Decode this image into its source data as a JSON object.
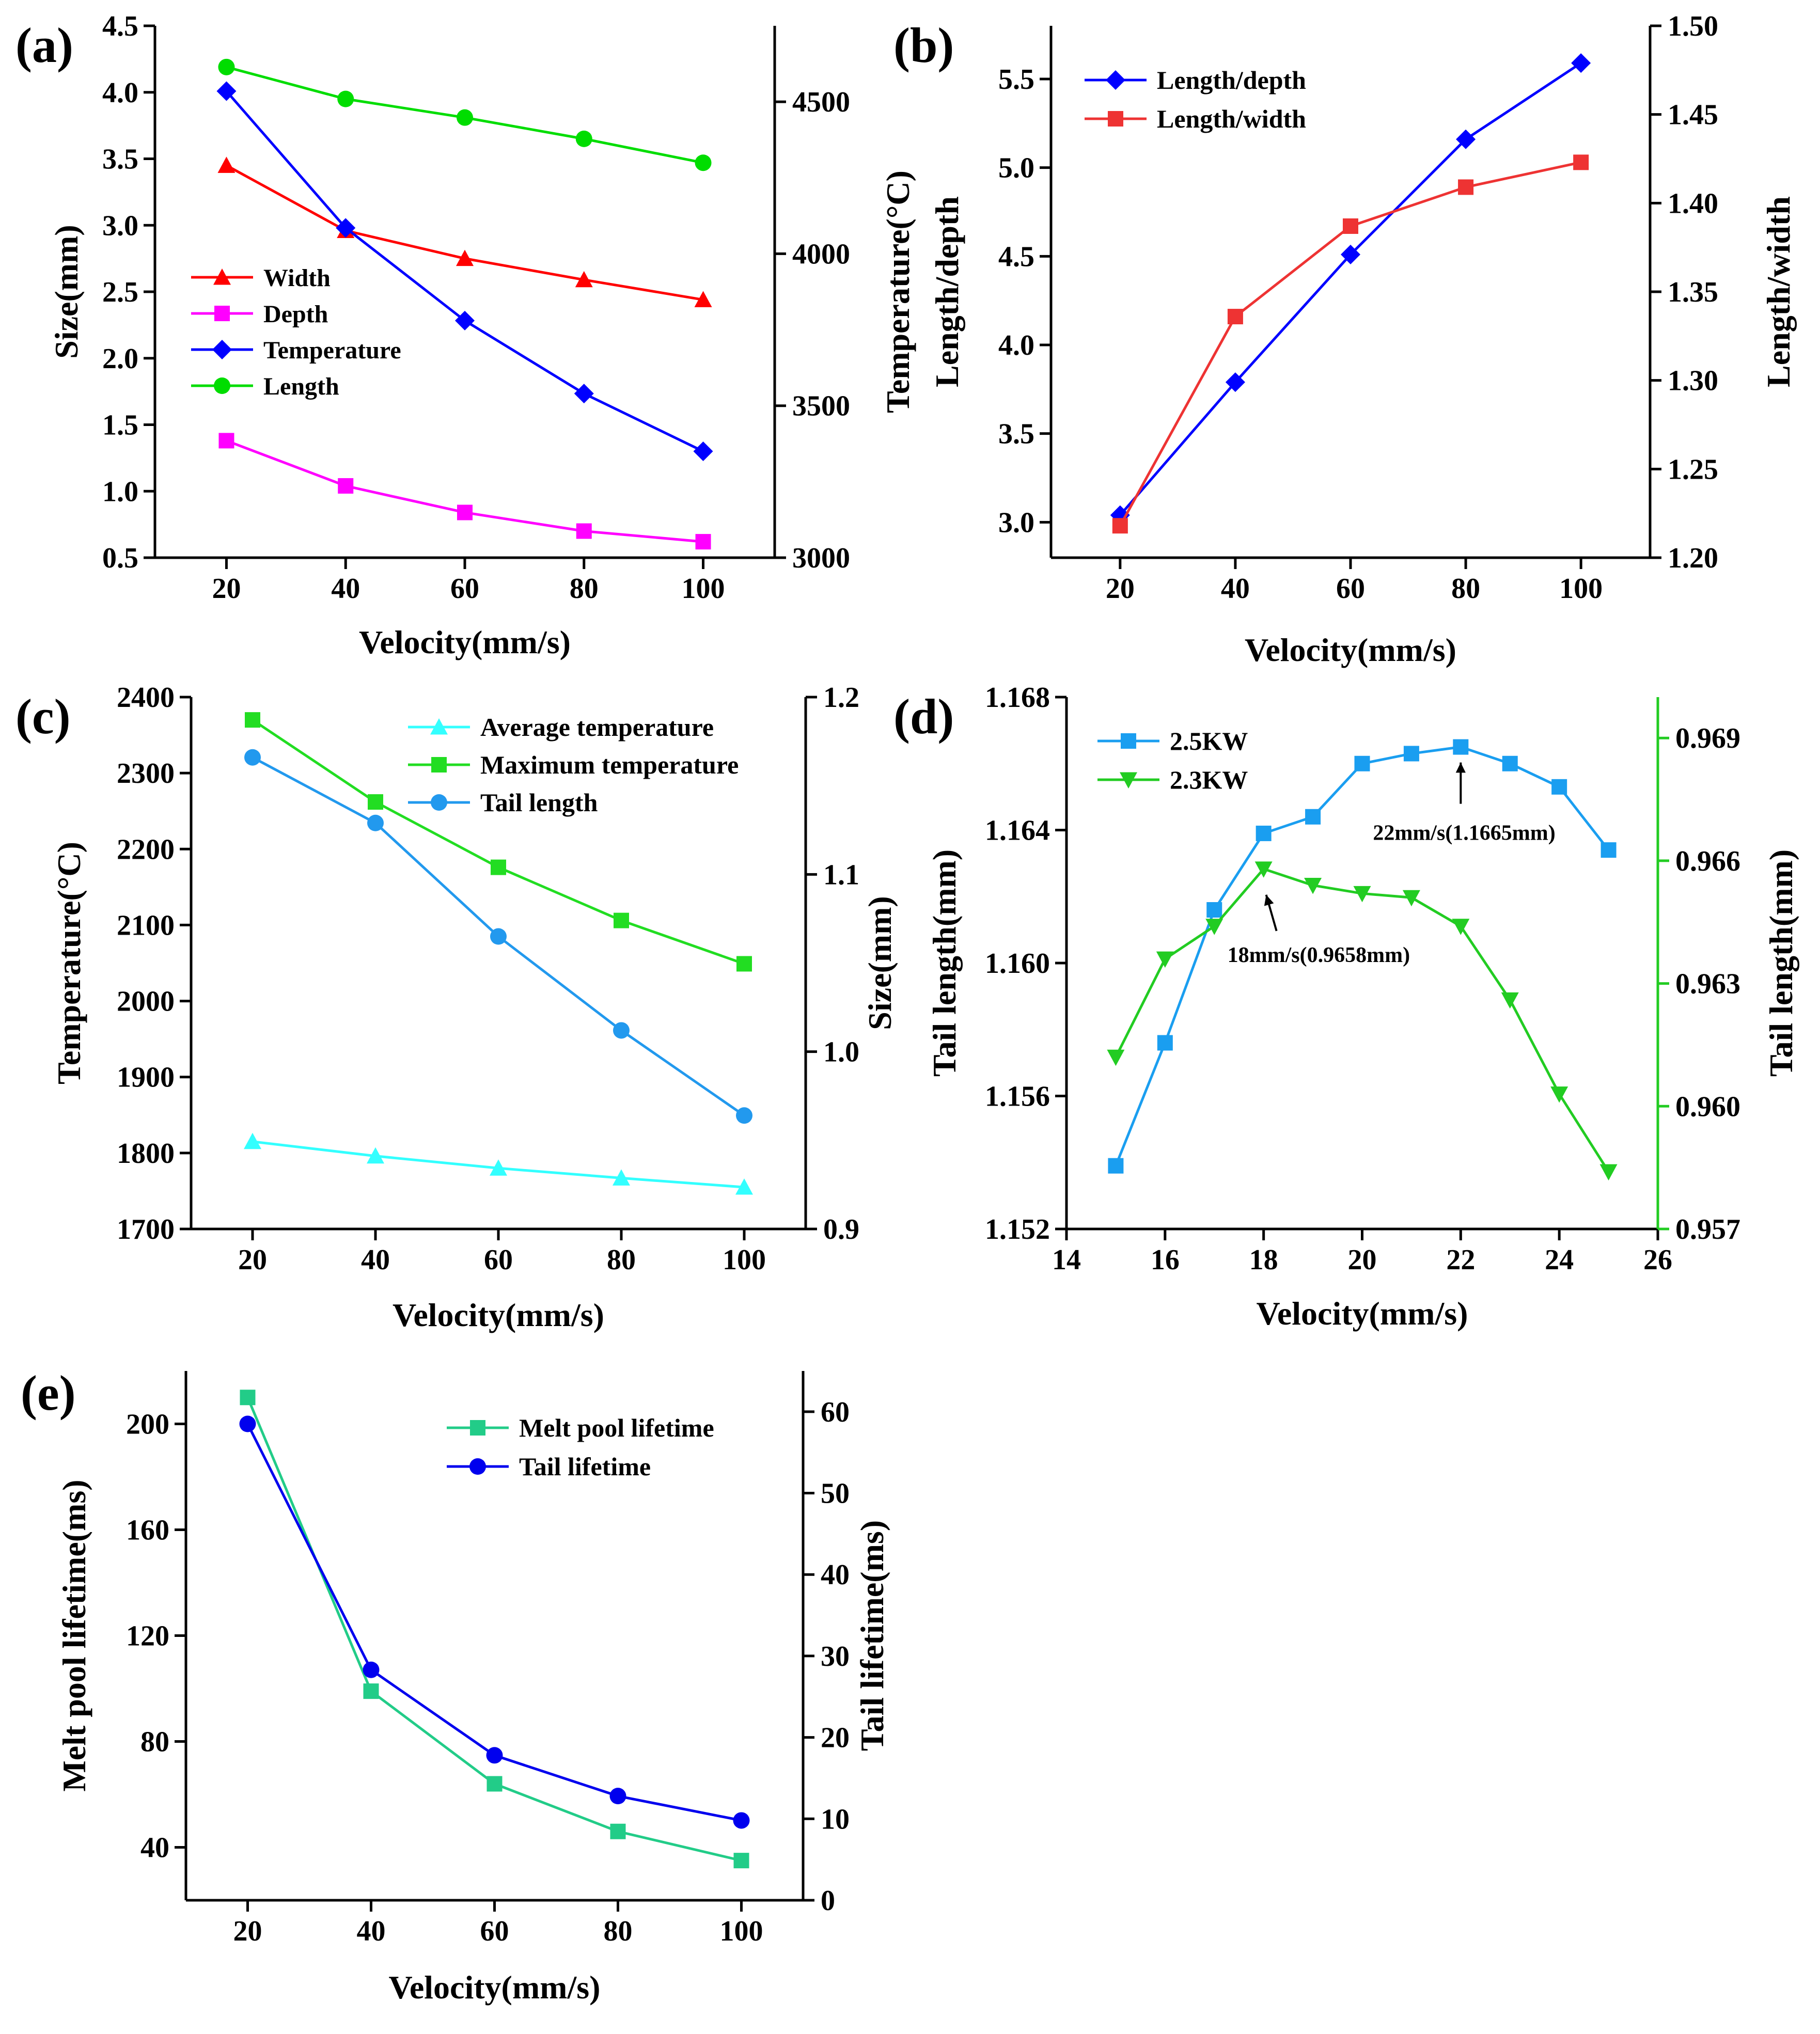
{
  "chart_data": [
    {
      "id": "a",
      "panel_label": "(a)",
      "type": "line",
      "xlabel": "Velocity(mm/s)",
      "ylabel": "Size(mm)",
      "y2label": "Temperature(°C)",
      "xlim": [
        8,
        112
      ],
      "ylim": [
        0.5,
        4.5
      ],
      "y2lim": [
        3000,
        4750
      ],
      "xticks": [
        20,
        40,
        60,
        80,
        100
      ],
      "yticks": [
        "0.5",
        "1.0",
        "1.5",
        "2.0",
        "2.5",
        "3.0",
        "3.5",
        "4.0",
        "4.5"
      ],
      "y2ticks": [
        "3000",
        "3500",
        "4000",
        "4500"
      ],
      "legend": "center-left",
      "series": [
        {
          "name": "Width",
          "color": "#ff0000",
          "marker": "triangle",
          "axis": "left",
          "x": [
            20,
            40,
            60,
            80,
            100
          ],
          "values": [
            3.45,
            2.96,
            2.75,
            2.59,
            2.44
          ]
        },
        {
          "name": "Depth",
          "color": "#ff00ff",
          "marker": "square",
          "axis": "left",
          "x": [
            20,
            40,
            60,
            80,
            100
          ],
          "values": [
            1.38,
            1.04,
            0.84,
            0.7,
            0.62
          ]
        },
        {
          "name": "Temperature",
          "color": "#0000ff",
          "marker": "diamond",
          "axis": "right",
          "x": [
            20,
            40,
            60,
            80,
            100
          ],
          "values": [
            4535,
            4085,
            3780,
            3540,
            3350
          ]
        },
        {
          "name": "Length",
          "color": "#00dd00",
          "marker": "circle",
          "axis": "left",
          "x": [
            20,
            40,
            60,
            80,
            100
          ],
          "values": [
            4.19,
            3.95,
            3.81,
            3.65,
            3.47
          ]
        }
      ]
    },
    {
      "id": "b",
      "panel_label": "(b)",
      "type": "line",
      "xlabel": "Velocity(mm/s)",
      "ylabel": "Length/depth",
      "y2label": "Length/width",
      "xlim": [
        8,
        112
      ],
      "ylim": [
        2.8,
        5.8
      ],
      "y2lim": [
        1.2,
        1.5
      ],
      "xticks": [
        20,
        40,
        60,
        80,
        100
      ],
      "yticks": [
        "3.0",
        "3.5",
        "4.0",
        "4.5",
        "5.0",
        "5.5"
      ],
      "y2ticks": [
        "1.20",
        "1.25",
        "1.30",
        "1.35",
        "1.40",
        "1.45",
        "1.50"
      ],
      "legend": "top-left",
      "series": [
        {
          "name": "Length/depth",
          "color": "#0000ff",
          "marker": "diamond",
          "axis": "left",
          "x": [
            20,
            40,
            60,
            80,
            100
          ],
          "values": [
            3.04,
            3.79,
            4.51,
            5.16,
            5.59
          ]
        },
        {
          "name": "Length/width",
          "color": "#ee3333",
          "marker": "square",
          "axis": "right",
          "x": [
            20,
            40,
            60,
            80,
            100
          ],
          "values": [
            1.218,
            1.336,
            1.387,
            1.409,
            1.423
          ]
        }
      ]
    },
    {
      "id": "c",
      "panel_label": "(c)",
      "type": "line",
      "xlabel": "Velocity(mm/s)",
      "ylabel": "Temperature(°C)",
      "y2label": "Size(mm)",
      "xlim": [
        10,
        110
      ],
      "ylim": [
        1700,
        2400
      ],
      "y2lim": [
        0.9,
        1.2
      ],
      "xticks": [
        20,
        40,
        60,
        80,
        100
      ],
      "yticks": [
        "1700",
        "1800",
        "1900",
        "2000",
        "2100",
        "2200",
        "2300",
        "2400"
      ],
      "y2ticks": [
        "0.9",
        "1.0",
        "1.1",
        "1.2"
      ],
      "legend": "top-right",
      "series": [
        {
          "name": "Average temperature",
          "color": "#33ffff",
          "marker": "triangle",
          "axis": "left",
          "x": [
            20,
            40,
            60,
            80,
            100
          ],
          "values": [
            1815,
            1796,
            1780,
            1767,
            1755
          ]
        },
        {
          "name": "Maximum temperature",
          "color": "#22dd22",
          "marker": "square",
          "axis": "left",
          "x": [
            20,
            40,
            60,
            80,
            100
          ],
          "values": [
            2370,
            2262,
            2176,
            2106,
            2049
          ]
        },
        {
          "name": "Tail length",
          "color": "#2299ee",
          "marker": "circle",
          "axis": "right",
          "x": [
            20,
            40,
            60,
            80,
            100
          ],
          "values": [
            1.166,
            1.129,
            1.065,
            1.012,
            0.964
          ]
        }
      ]
    },
    {
      "id": "d",
      "panel_label": "(d)",
      "type": "line",
      "xlabel": "Velocity(mm/s)",
      "ylabel": "Tail length(mm)",
      "y2label": "Tail length(mm)",
      "xlim": [
        14,
        26
      ],
      "ylim": [
        1.152,
        1.168
      ],
      "y2lim": [
        0.957,
        0.97
      ],
      "xticks": [
        14,
        16,
        18,
        20,
        22,
        24,
        26
      ],
      "yticks": [
        "1.152",
        "1.156",
        "1.160",
        "1.164",
        "1.168"
      ],
      "y2ticks": [
        "0.957",
        "0.960",
        "0.963",
        "0.966",
        "0.969"
      ],
      "legend": "top-left",
      "series": [
        {
          "name": "2.5KW",
          "color": "#1a9ef0",
          "marker": "square",
          "axis": "left",
          "x": [
            15,
            16,
            17,
            18,
            19,
            20,
            21,
            22,
            23,
            24,
            25
          ],
          "values": [
            1.1539,
            1.1576,
            1.1616,
            1.1639,
            1.1644,
            1.166,
            1.1663,
            1.1665,
            1.166,
            1.1653,
            1.1634
          ]
        },
        {
          "name": "2.3KW",
          "color": "#22cc22",
          "marker": "triangle-down",
          "axis": "right",
          "x": [
            15,
            16,
            17,
            18,
            19,
            20,
            21,
            22,
            23,
            24,
            25
          ],
          "values": [
            0.9612,
            0.9636,
            0.9644,
            0.9658,
            0.9654,
            0.9652,
            0.9651,
            0.9644,
            0.9626,
            0.9603,
            0.9584
          ]
        }
      ],
      "annotations": [
        {
          "text": "22mm/s(1.1665mm)",
          "x": 22,
          "series": "2.5KW"
        },
        {
          "text": "18mm/s(0.9658mm)",
          "x": 18,
          "series": "2.3KW"
        }
      ]
    },
    {
      "id": "e",
      "panel_label": "(e)",
      "type": "line",
      "xlabel": "Velocity(mm/s)",
      "ylabel": "Melt pool lifetime(ms)",
      "y2label": "Tail lifetime(ms)",
      "xlim": [
        10,
        110
      ],
      "ylim": [
        20,
        220
      ],
      "y2lim": [
        0,
        65
      ],
      "xticks": [
        20,
        40,
        60,
        80,
        100
      ],
      "yticks": [
        "40",
        "80",
        "120",
        "160",
        "200"
      ],
      "y2ticks": [
        "0",
        "10",
        "20",
        "30",
        "40",
        "50",
        "60"
      ],
      "legend": "top-right",
      "series": [
        {
          "name": "Melt pool lifetime",
          "color": "#22cc88",
          "marker": "square",
          "axis": "left",
          "x": [
            20,
            40,
            60,
            80,
            100
          ],
          "values": [
            210,
            99,
            64,
            46,
            35
          ]
        },
        {
          "name": "Tail lifetime",
          "color": "#0000ee",
          "marker": "circle",
          "axis": "right",
          "x": [
            20,
            40,
            60,
            80,
            100
          ],
          "values": [
            58.5,
            28.3,
            17.8,
            12.8,
            9.8
          ]
        }
      ]
    }
  ]
}
